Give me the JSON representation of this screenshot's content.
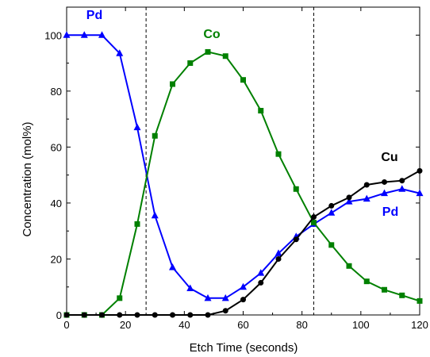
{
  "chart_data": {
    "type": "line",
    "xlabel": "Etch Time (seconds)",
    "ylabel": "Concentration (mol%)",
    "xlim": [
      0,
      120
    ],
    "ylim": [
      0,
      110
    ],
    "x_ticks": [
      0,
      20,
      40,
      60,
      80,
      100,
      120
    ],
    "y_ticks": [
      0,
      20,
      40,
      60,
      80,
      100
    ],
    "x_tick_labels": [
      "0",
      "20",
      "40",
      "60",
      "80",
      "100",
      "120"
    ],
    "y_tick_labels": [
      "0",
      "20",
      "40",
      "60",
      "80",
      "100"
    ],
    "grid": false,
    "vertical_dashed_lines": [
      27,
      84
    ],
    "series": [
      {
        "name": "Pd",
        "color": "#0000ff",
        "marker": "triangle",
        "label_position": "top-left",
        "x": [
          0,
          6,
          12,
          18,
          24,
          30,
          36,
          42,
          48,
          54,
          60,
          66,
          72,
          78,
          84,
          90,
          96,
          102,
          108,
          114,
          120
        ],
        "values": [
          100,
          100,
          100,
          93.5,
          67,
          35.5,
          17,
          9.5,
          6,
          6,
          10,
          15,
          22,
          28,
          32.5,
          36.5,
          40.5,
          41.5,
          43.5,
          45,
          43.5
        ]
      },
      {
        "name": "Co",
        "color": "#008000",
        "marker": "square",
        "label_position": "top-center",
        "x": [
          0,
          6,
          12,
          18,
          24,
          30,
          36,
          42,
          48,
          54,
          60,
          66,
          72,
          78,
          84,
          90,
          96,
          102,
          108,
          114,
          120
        ],
        "values": [
          0,
          0,
          0,
          6,
          32.5,
          64,
          82.5,
          90,
          94,
          92.5,
          84,
          73,
          57.5,
          45,
          33,
          25,
          17.5,
          12,
          9,
          7,
          5
        ]
      },
      {
        "name": "Cu",
        "color": "#000000",
        "marker": "circle",
        "label_position": "right",
        "x": [
          0,
          6,
          12,
          18,
          24,
          30,
          36,
          42,
          48,
          54,
          60,
          66,
          72,
          78,
          84,
          90,
          96,
          102,
          108,
          114,
          120
        ],
        "values": [
          0,
          0,
          0,
          0,
          0,
          0,
          0,
          0,
          0,
          1.5,
          5.5,
          11.5,
          20,
          27,
          35,
          39,
          42,
          46.5,
          47.5,
          48,
          51.5
        ]
      }
    ],
    "annotations": [
      {
        "text": "Pd",
        "series": "Pd",
        "color": "#0000ff"
      },
      {
        "text": "Co",
        "series": "Co",
        "color": "#008000"
      },
      {
        "text": "Cu",
        "series": "Cu",
        "color": "#000000"
      },
      {
        "text": "Pd",
        "series": "Pd",
        "color": "#0000ff"
      }
    ]
  }
}
